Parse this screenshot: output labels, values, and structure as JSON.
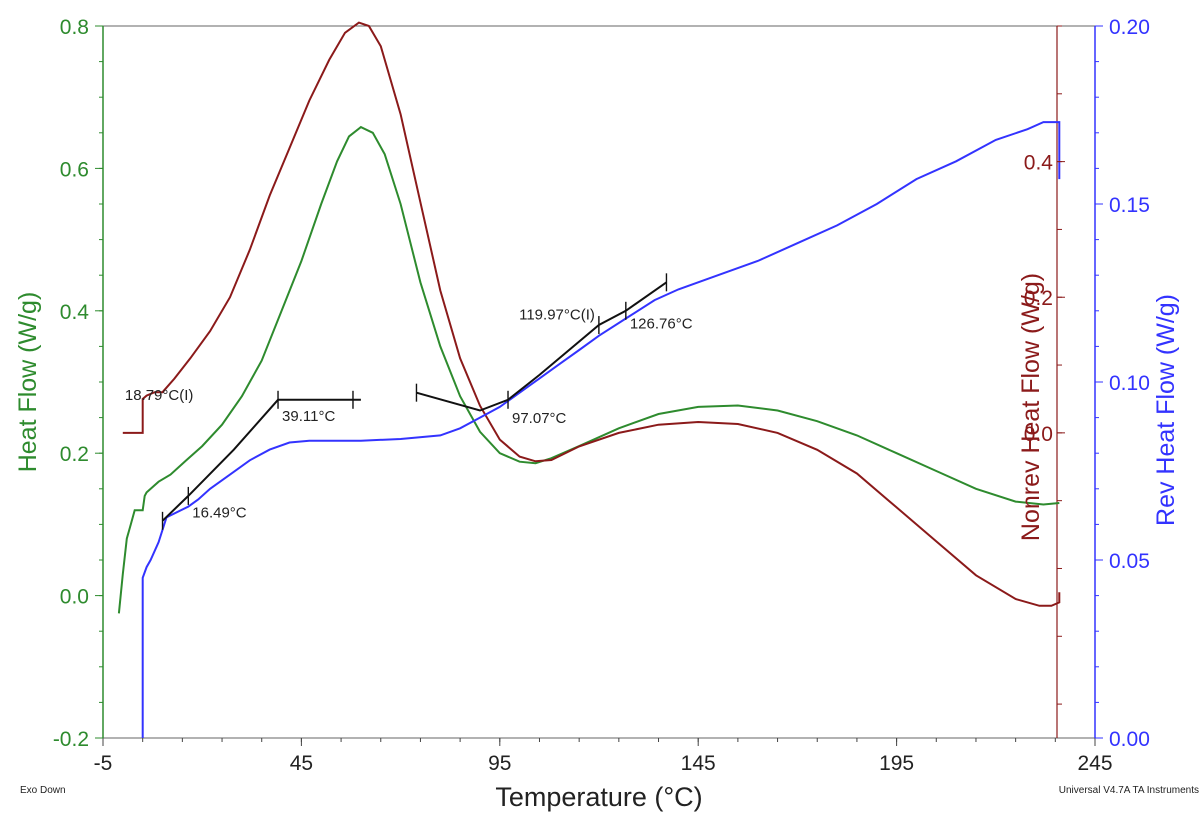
{
  "chart_data": {
    "type": "line",
    "xlabel": "Temperature (°C)",
    "footer_left": "Exo Down",
    "footer_right": "Universal V4.7A TA Instruments",
    "x_axis": {
      "range": [
        -5,
        245
      ],
      "ticks": [
        "-5",
        "45",
        "95",
        "145",
        "195",
        "245"
      ]
    },
    "left_axis": {
      "label": "Heat Flow (W/g)",
      "color": "#2e8b2e",
      "range": [
        -0.2,
        0.8
      ],
      "ticks": [
        "-0.2",
        "0.0",
        "0.2",
        "0.4",
        "0.6",
        "0.8"
      ]
    },
    "nonrev_axis": {
      "label": "Nonrev Heat Flow (W/g)",
      "color": "#8b1a1a",
      "range": [
        -0.45,
        0.6
      ],
      "ticks": [
        "0.0",
        "0.2",
        "0.4"
      ]
    },
    "rev_axis": {
      "label": "Rev Heat Flow (W/g)",
      "color": "#3333ff",
      "range": [
        0.0,
        0.2
      ],
      "ticks": [
        "0.00",
        "0.05",
        "0.10",
        "0.15",
        "0.20"
      ]
    },
    "series": [
      {
        "key": "heat_flow",
        "axis": "left",
        "color": "#2e8b2e",
        "points": [
          [
            -1,
            -0.025
          ],
          [
            0,
            0.03
          ],
          [
            1,
            0.08
          ],
          [
            2,
            0.1
          ],
          [
            3,
            0.12
          ],
          [
            5,
            0.12
          ],
          [
            5.5,
            0.14
          ],
          [
            6,
            0.145
          ],
          [
            9,
            0.16
          ],
          [
            12,
            0.17
          ],
          [
            16,
            0.19
          ],
          [
            20,
            0.21
          ],
          [
            25,
            0.24
          ],
          [
            30,
            0.28
          ],
          [
            35,
            0.33
          ],
          [
            40,
            0.4
          ],
          [
            45,
            0.47
          ],
          [
            50,
            0.55
          ],
          [
            54,
            0.61
          ],
          [
            57,
            0.645
          ],
          [
            60,
            0.658
          ],
          [
            63,
            0.65
          ],
          [
            66,
            0.62
          ],
          [
            70,
            0.55
          ],
          [
            75,
            0.44
          ],
          [
            80,
            0.35
          ],
          [
            85,
            0.28
          ],
          [
            90,
            0.23
          ],
          [
            95,
            0.2
          ],
          [
            100,
            0.188
          ],
          [
            104,
            0.186
          ],
          [
            108,
            0.193
          ],
          [
            115,
            0.21
          ],
          [
            125,
            0.235
          ],
          [
            135,
            0.255
          ],
          [
            145,
            0.265
          ],
          [
            155,
            0.267
          ],
          [
            165,
            0.26
          ],
          [
            175,
            0.245
          ],
          [
            185,
            0.225
          ],
          [
            195,
            0.2
          ],
          [
            205,
            0.175
          ],
          [
            215,
            0.15
          ],
          [
            225,
            0.132
          ],
          [
            232,
            0.128
          ],
          [
            236,
            0.13
          ]
        ]
      },
      {
        "key": "nonrev",
        "axis": "nonrev",
        "color": "#8b1a1a",
        "points": [
          [
            0,
            0.0
          ],
          [
            5,
            0.0
          ],
          [
            5,
            0.05
          ],
          [
            6,
            0.055
          ],
          [
            8,
            0.06
          ],
          [
            10,
            0.06
          ],
          [
            13,
            0.08
          ],
          [
            17,
            0.11
          ],
          [
            22,
            0.15
          ],
          [
            27,
            0.2
          ],
          [
            32,
            0.27
          ],
          [
            37,
            0.35
          ],
          [
            42,
            0.42
          ],
          [
            47,
            0.49
          ],
          [
            52,
            0.55
          ],
          [
            56,
            0.59
          ],
          [
            59.5,
            0.605
          ],
          [
            62,
            0.6
          ],
          [
            65,
            0.57
          ],
          [
            70,
            0.47
          ],
          [
            75,
            0.34
          ],
          [
            80,
            0.21
          ],
          [
            85,
            0.11
          ],
          [
            90,
            0.04
          ],
          [
            95,
            -0.01
          ],
          [
            100,
            -0.035
          ],
          [
            104,
            -0.042
          ],
          [
            108,
            -0.04
          ],
          [
            115,
            -0.02
          ],
          [
            125,
            0.0
          ],
          [
            135,
            0.012
          ],
          [
            145,
            0.016
          ],
          [
            155,
            0.013
          ],
          [
            165,
            0.0
          ],
          [
            175,
            -0.025
          ],
          [
            185,
            -0.06
          ],
          [
            195,
            -0.11
          ],
          [
            205,
            -0.16
          ],
          [
            215,
            -0.21
          ],
          [
            225,
            -0.245
          ],
          [
            231,
            -0.255
          ],
          [
            234,
            -0.255
          ],
          [
            236,
            -0.25
          ],
          [
            236,
            -0.235
          ]
        ]
      },
      {
        "key": "rev",
        "axis": "rev",
        "color": "#3333ff",
        "points": [
          [
            5,
            0.0
          ],
          [
            5,
            0.045
          ],
          [
            6,
            0.048
          ],
          [
            7,
            0.05
          ],
          [
            9,
            0.055
          ],
          [
            11,
            0.062
          ],
          [
            16.5,
            0.065
          ],
          [
            19,
            0.067
          ],
          [
            22,
            0.07
          ],
          [
            27,
            0.074
          ],
          [
            32,
            0.078
          ],
          [
            37,
            0.081
          ],
          [
            42,
            0.083
          ],
          [
            47,
            0.0835
          ],
          [
            52,
            0.0835
          ],
          [
            60,
            0.0835
          ],
          [
            70,
            0.084
          ],
          [
            80,
            0.085
          ],
          [
            85,
            0.087
          ],
          [
            90,
            0.09
          ],
          [
            95,
            0.093
          ],
          [
            100,
            0.097
          ],
          [
            105,
            0.101
          ],
          [
            110,
            0.105
          ],
          [
            115,
            0.109
          ],
          [
            120,
            0.113
          ],
          [
            127,
            0.118
          ],
          [
            134,
            0.123
          ],
          [
            140,
            0.126
          ],
          [
            150,
            0.13
          ],
          [
            160,
            0.134
          ],
          [
            170,
            0.139
          ],
          [
            180,
            0.144
          ],
          [
            190,
            0.15
          ],
          [
            200,
            0.157
          ],
          [
            210,
            0.162
          ],
          [
            220,
            0.168
          ],
          [
            228,
            0.171
          ],
          [
            232,
            0.173
          ],
          [
            236,
            0.173
          ],
          [
            236,
            0.157
          ]
        ]
      },
      {
        "key": "rev_onset_fit_1",
        "axis": "rev",
        "color": "#111111",
        "points": [
          [
            10,
            0.061
          ],
          [
            16.5,
            0.068
          ],
          [
            28,
            0.081
          ],
          [
            39.11,
            0.095
          ],
          [
            60,
            0.095
          ]
        ]
      },
      {
        "key": "rev_onset_fit_2",
        "axis": "rev",
        "color": "#111111",
        "points": [
          [
            74,
            0.097
          ],
          [
            90,
            0.092
          ],
          [
            97.07,
            0.095
          ],
          [
            105,
            0.102
          ],
          [
            119.97,
            0.116
          ],
          [
            126.76,
            0.12
          ],
          [
            137,
            0.128
          ]
        ]
      }
    ],
    "tick_marks": [
      [
        10,
        0.061
      ],
      [
        16.5,
        0.068
      ],
      [
        39.11,
        0.095
      ],
      [
        58,
        0.095
      ],
      [
        74,
        0.097
      ],
      [
        97.07,
        0.095
      ],
      [
        119.97,
        0.116
      ],
      [
        126.76,
        0.12
      ],
      [
        137,
        0.128
      ]
    ],
    "annotations": [
      {
        "text": "18.79°C(I)",
        "x": 18.79,
        "y": 0.095,
        "axis": "rev",
        "align": "end"
      },
      {
        "text": "39.11°C",
        "x": 39.11,
        "y": 0.089,
        "axis": "rev",
        "align": "start"
      },
      {
        "text": "16.49°C",
        "x": 16.49,
        "y": 0.062,
        "axis": "rev",
        "align": "start"
      },
      {
        "text": "97.07°C",
        "x": 97.07,
        "y": 0.0885,
        "axis": "rev",
        "align": "start"
      },
      {
        "text": "119.97°C(I)",
        "x": 119.97,
        "y": 0.1175,
        "axis": "rev",
        "align": "end"
      },
      {
        "text": "126.76°C",
        "x": 126.76,
        "y": 0.115,
        "axis": "rev",
        "align": "start"
      }
    ]
  }
}
